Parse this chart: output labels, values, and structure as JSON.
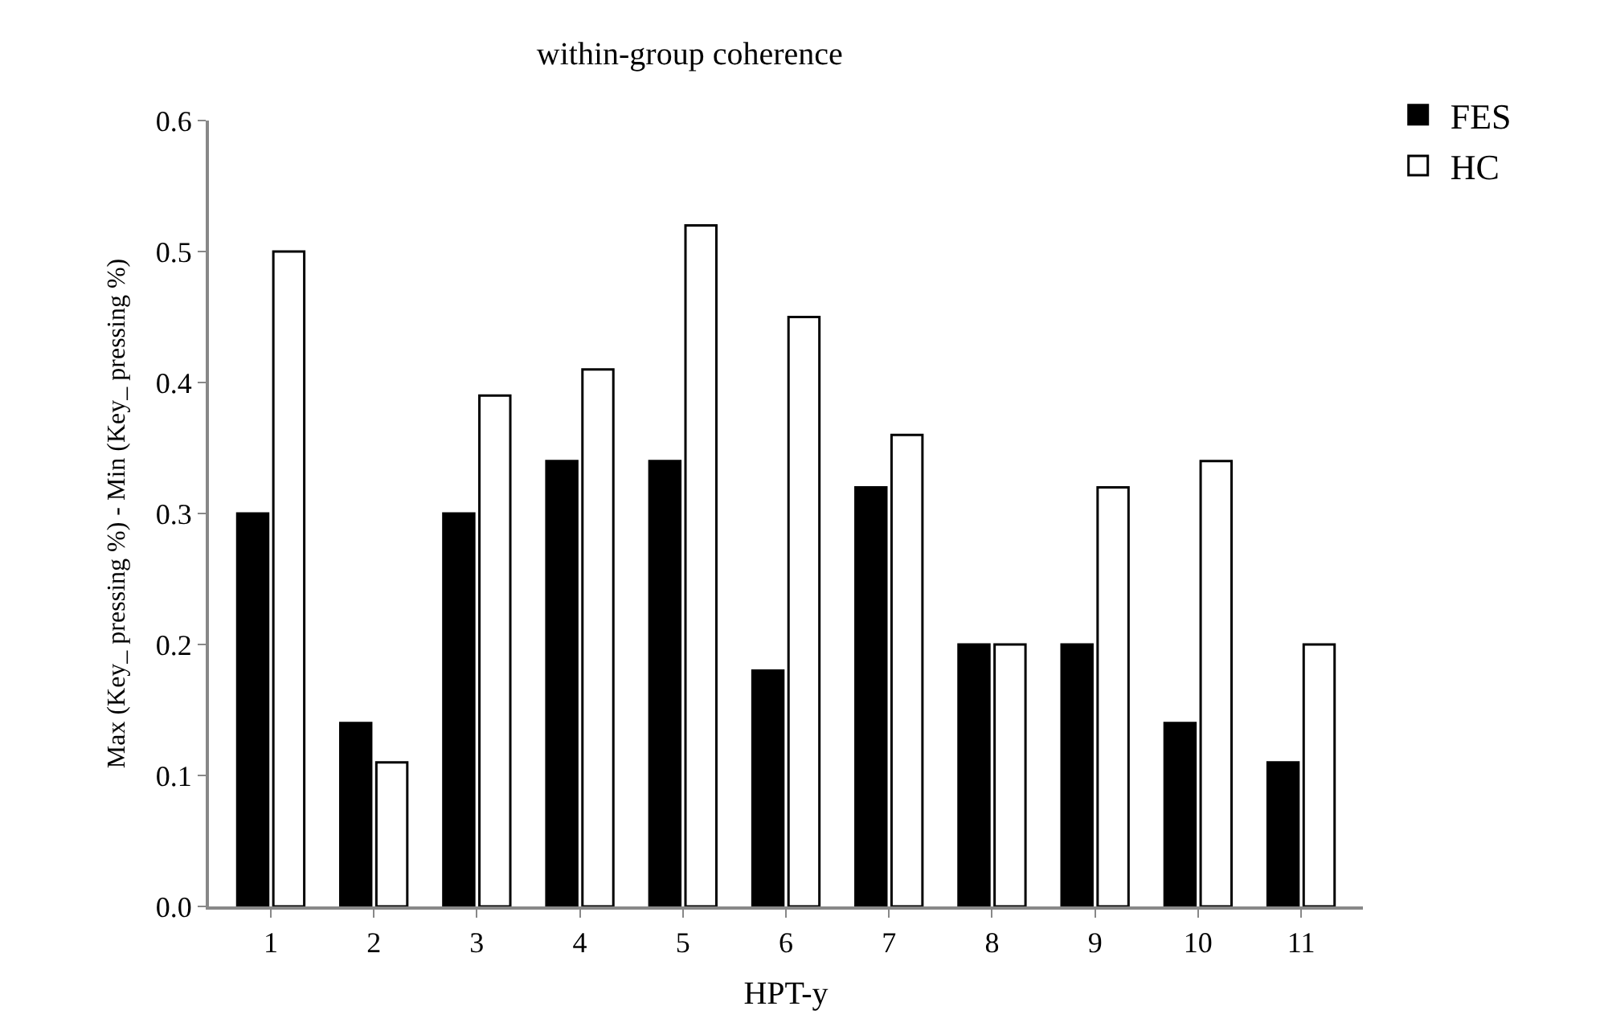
{
  "chart_data": {
    "type": "bar",
    "title": "within-group coherence",
    "xlabel": "HPT-y",
    "ylabel": "Max (Key_ pressing %) - Min (Key_ pressing %)",
    "categories": [
      "1",
      "2",
      "3",
      "4",
      "5",
      "6",
      "7",
      "8",
      "9",
      "10",
      "11"
    ],
    "series": [
      {
        "name": "FES",
        "color": "#000000",
        "values": [
          0.3,
          0.14,
          0.3,
          0.34,
          0.34,
          0.18,
          0.32,
          0.2,
          0.2,
          0.14,
          0.11
        ]
      },
      {
        "name": "HC",
        "color": "#ffffff",
        "values": [
          0.5,
          0.11,
          0.39,
          0.41,
          0.52,
          0.45,
          0.36,
          0.2,
          0.32,
          0.34,
          0.2
        ]
      }
    ],
    "ylim": [
      0,
      0.6
    ],
    "yticks": [
      {
        "value": 0,
        "label": "0.0"
      },
      0.1,
      0.2,
      0.3,
      0.4,
      0.5,
      0.6
    ],
    "legend": "top right"
  }
}
